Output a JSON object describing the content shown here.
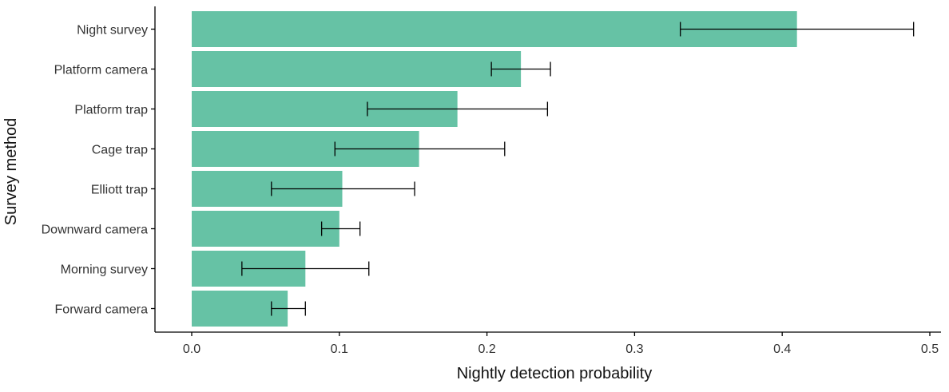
{
  "chart_data": {
    "type": "bar",
    "orientation": "horizontal",
    "xlabel": "Nightly detection probability",
    "ylabel": "Survey method",
    "xlim": [
      0,
      0.5
    ],
    "xticks": [
      "0.0",
      "0.1",
      "0.2",
      "0.3",
      "0.4",
      "0.5"
    ],
    "grid": false,
    "bar_color": "#66c2a5",
    "error_bar_color": "#000000",
    "categories": [
      "Night survey",
      "Platform camera",
      "Platform trap",
      "Cage trap",
      "Elliott trap",
      "Downward camera",
      "Morning survey",
      "Forward camera"
    ],
    "values": [
      0.41,
      0.223,
      0.18,
      0.154,
      0.102,
      0.1,
      0.077,
      0.065
    ],
    "error_low": [
      0.331,
      0.203,
      0.119,
      0.097,
      0.054,
      0.088,
      0.034,
      0.054
    ],
    "error_high": [
      0.489,
      0.243,
      0.241,
      0.212,
      0.151,
      0.114,
      0.12,
      0.077
    ]
  }
}
